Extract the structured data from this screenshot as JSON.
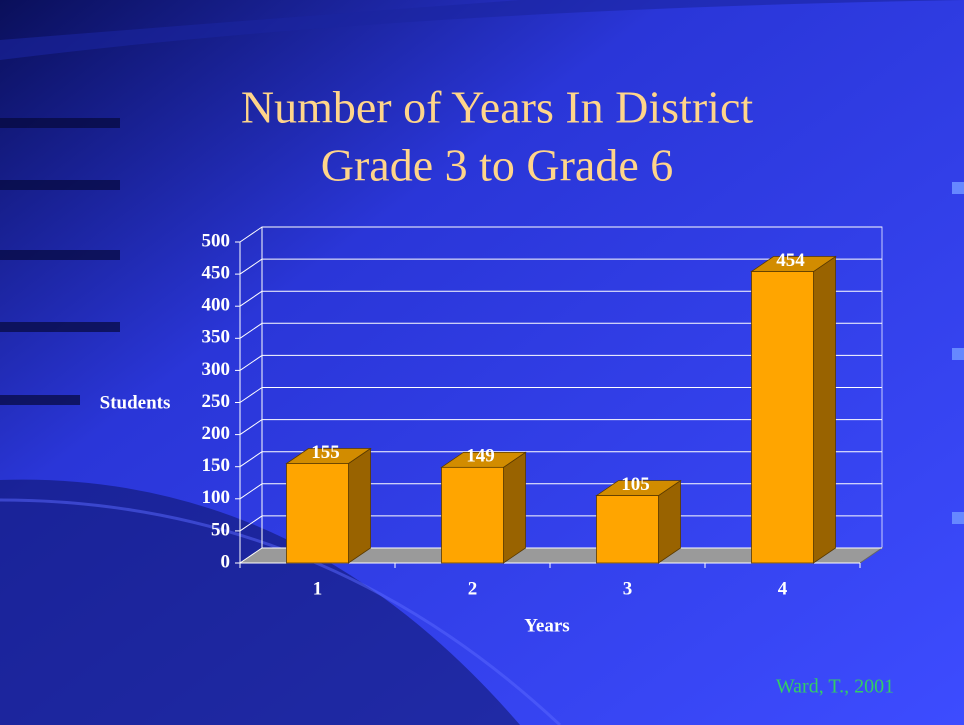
{
  "chart_data": {
    "type": "bar",
    "title": "Number of Years In District",
    "subtitle": "Grade 3 to Grade 6",
    "xlabel": "Years",
    "ylabel": "Students",
    "categories": [
      "1",
      "2",
      "3",
      "4"
    ],
    "values": [
      155,
      149,
      105,
      454
    ],
    "color": "#ffa500",
    "ylim": [
      0,
      500
    ],
    "yticks": [
      0,
      50,
      100,
      150,
      200,
      250,
      300,
      350,
      400,
      450,
      500
    ],
    "grid": true,
    "annotation": "Ward, T., 2001"
  }
}
